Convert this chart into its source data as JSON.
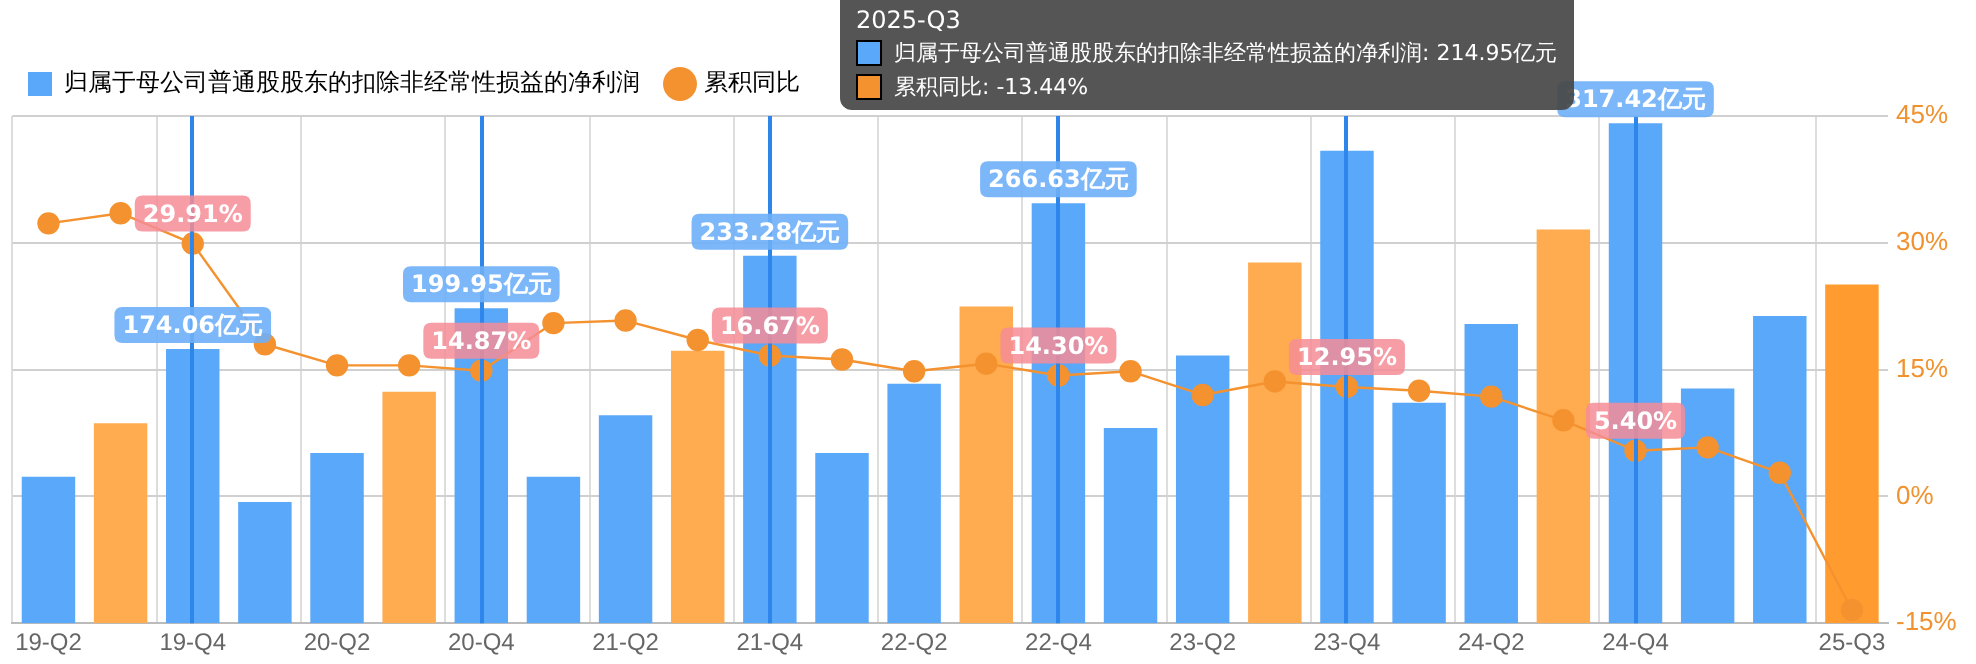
{
  "chart_data": {
    "type": "bar",
    "legend": "top left",
    "grid": true,
    "marker": "circle",
    "categories": [
      "19-Q2",
      null,
      "19-Q4",
      null,
      "20-Q2",
      null,
      "20-Q4",
      null,
      "21-Q2",
      null,
      "21-Q4",
      null,
      "22-Q2",
      null,
      "22-Q4",
      null,
      "23-Q2",
      null,
      "23-Q4",
      null,
      "24-Q2",
      null,
      "24-Q4",
      null,
      null,
      "25-Q3"
    ],
    "ylim": [
      0,
      322
    ],
    "y2lim": [
      -15,
      45
    ],
    "y2ticks": [
      {
        "value": -15,
        "label": "-15%"
      },
      {
        "value": 0,
        "label": "0%"
      },
      {
        "value": 15,
        "label": "15%"
      },
      {
        "value": 30,
        "label": "30%"
      },
      {
        "value": 45,
        "label": "45%"
      }
    ],
    "tick_labels": "x",
    "series": [
      {
        "name": "归属于母公司普通股股东的扣除非经常性损益的净利润",
        "color": "#5aa8fa",
        "colors": [
          "#5aa8fa",
          "#ffab4f",
          "#5aa8fa",
          "#5aa8fa",
          "#5aa8fa",
          "#ffab4f",
          "#5aa8fa",
          "#5aa8fa",
          "#5aa8fa",
          "#ffab4f",
          "#5aa8fa",
          "#5aa8fa",
          "#5aa8fa",
          "#ffab4f",
          "#5aa8fa",
          "#5aa8fa",
          "#5aa8fa",
          "#ffab4f",
          "#5aa8fa",
          "#5aa8fa",
          "#5aa8fa",
          "#ffab4f",
          "#5aa8fa",
          "#5aa8fa",
          "#5aa8fa",
          "#ff9b2f"
        ],
        "values": [
          93,
          127,
          174.06,
          77,
          108,
          147,
          199.95,
          93,
          132,
          173,
          233.28,
          108,
          152,
          201,
          266.63,
          124,
          170,
          229,
          300,
          140,
          190,
          250,
          317.42,
          149,
          195,
          214.95
        ],
        "value_labels": [
          null,
          null,
          "174.06亿元",
          null,
          null,
          null,
          "199.95亿元",
          null,
          null,
          null,
          "233.28亿元",
          null,
          null,
          null,
          "266.63亿元",
          null,
          null,
          null,
          null,
          null,
          null,
          null,
          "317.42亿元",
          null,
          null,
          null
        ]
      },
      {
        "name": "累积同比",
        "type": "line",
        "axis": "y2",
        "color": "#f4922f",
        "values": [
          32.3,
          33.5,
          29.91,
          18.0,
          15.5,
          15.5,
          14.87,
          20.5,
          20.8,
          18.5,
          16.67,
          16.2,
          14.8,
          15.7,
          14.3,
          14.8,
          12.0,
          13.6,
          12.95,
          12.5,
          11.8,
          9.0,
          5.4,
          5.8,
          2.8,
          -13.44
        ],
        "value_labels": [
          null,
          null,
          "29.91%",
          null,
          null,
          null,
          "14.87%",
          null,
          null,
          null,
          "16.67%",
          null,
          null,
          null,
          "14.30%",
          null,
          null,
          null,
          "12.95%",
          null,
          null,
          null,
          "5.40%",
          null,
          null,
          null
        ]
      }
    ],
    "ref_lines": [
      {
        "axis": "x",
        "value": "19-Q4",
        "color": "#2f86ea"
      },
      {
        "axis": "x",
        "value": "20-Q4",
        "color": "#2f86ea"
      },
      {
        "axis": "x",
        "value": "21-Q4",
        "color": "#2f86ea"
      },
      {
        "axis": "x",
        "value": "22-Q4",
        "color": "#2f86ea"
      },
      {
        "axis": "x",
        "value": "23-Q4",
        "color": "#2f86ea"
      },
      {
        "axis": "x",
        "value": "24-Q4",
        "color": "#2f86ea"
      }
    ],
    "annotations": [
      "2025-Q3",
      "归属于母公司普通股股东的扣除非经常性损益的净利润: 214.95亿元",
      "累积同比: -13.44%"
    ]
  }
}
